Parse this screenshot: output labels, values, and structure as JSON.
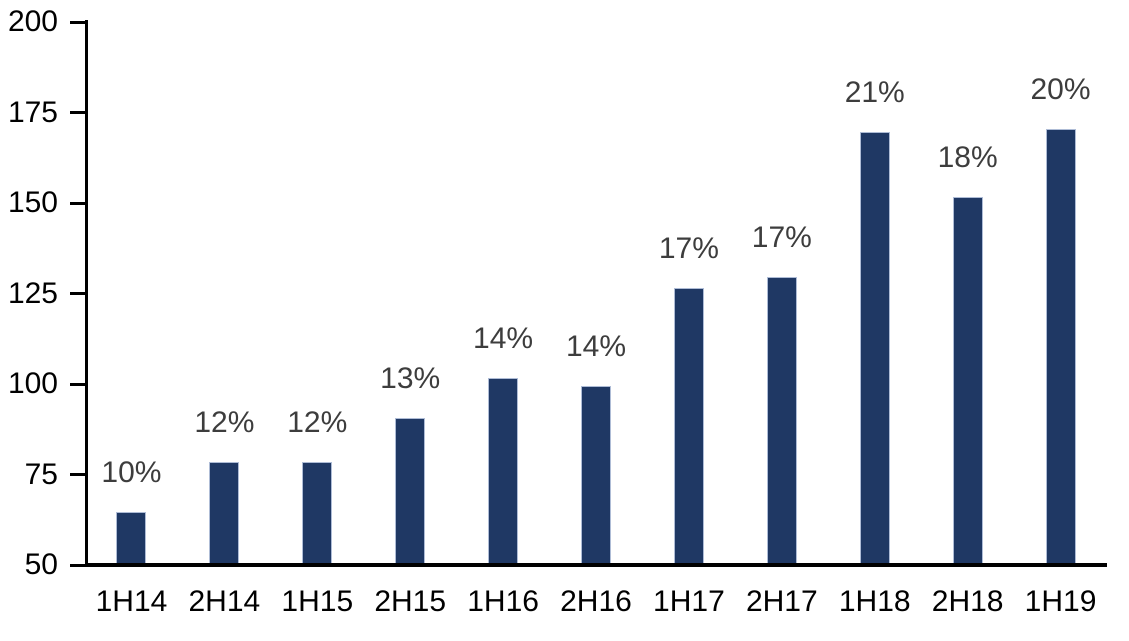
{
  "chart_data": {
    "type": "bar",
    "categories": [
      "1H14",
      "2H14",
      "1H15",
      "2H15",
      "1H16",
      "2H16",
      "1H17",
      "2H17",
      "1H18",
      "2H18",
      "1H19"
    ],
    "values": [
      64,
      78,
      78,
      90,
      101,
      99,
      126,
      129,
      169,
      151,
      170
    ],
    "bar_labels": [
      "10%",
      "12%",
      "12%",
      "13%",
      "14%",
      "14%",
      "17%",
      "17%",
      "21%",
      "18%",
      "20%"
    ],
    "yticks": [
      200,
      175,
      150,
      125,
      100,
      75,
      50
    ],
    "ylim": [
      50,
      200
    ],
    "grid": false,
    "legend_position": "none",
    "colors": {
      "bar_fill": "#1f3864",
      "bar_border": "#aebcd6",
      "value_label": "#3d3d3d",
      "axis_line": "#000000",
      "axis_text": "#000000",
      "background": "#ffffff"
    }
  }
}
